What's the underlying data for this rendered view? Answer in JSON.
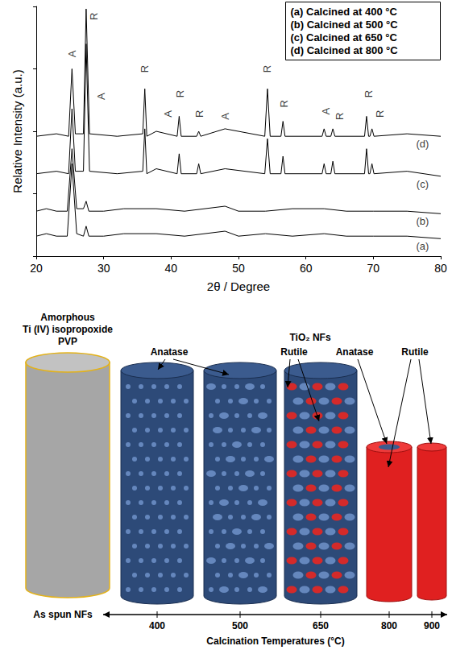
{
  "chart_data": {
    "type": "line",
    "x_label": "2θ / Degree",
    "y_label": "Relative Intensity (a.u.)",
    "xlim": [
      20,
      80
    ],
    "xticks": [
      20,
      30,
      40,
      50,
      60,
      70,
      80
    ],
    "ylim": [
      0,
      100
    ],
    "yticks": [
      0,
      25,
      50,
      75,
      100
    ],
    "tick_labels": "x",
    "grid": false,
    "series": [
      {
        "name": "(a)",
        "color": "#000000",
        "x": [
          20,
          21.5,
          23,
          24.6,
          25.3,
          26,
          27,
          27.4,
          27.8,
          30,
          33,
          37.8,
          42,
          48,
          50,
          54,
          58,
          62.7,
          66,
          70,
          75,
          80
        ],
        "values": [
          8,
          9,
          8,
          8,
          37,
          9,
          8,
          12,
          8,
          8,
          9,
          9,
          8,
          10,
          8,
          9,
          8,
          9,
          8,
          8,
          8,
          7
        ]
      },
      {
        "name": "(b)",
        "color": "#000000",
        "x": [
          20,
          21.5,
          23,
          24.6,
          25.3,
          26,
          27,
          27.4,
          27.8,
          30,
          33,
          37.8,
          42,
          48,
          50,
          54,
          58,
          62.7,
          66,
          70,
          75,
          80
        ],
        "values": [
          18,
          19,
          18,
          18,
          43,
          19,
          19,
          22,
          18,
          18,
          19,
          19,
          18,
          20,
          18,
          18,
          19,
          19,
          18,
          18,
          18,
          17
        ]
      },
      {
        "name": "(c)",
        "color": "#000000",
        "x": [
          20,
          23,
          24.8,
          25.3,
          25.8,
          27,
          27.4,
          27.9,
          32,
          35.8,
          36.1,
          36.4,
          37.8,
          40.9,
          41.2,
          41.5,
          43.8,
          44.1,
          44.4,
          48,
          53.9,
          54.3,
          54.7,
          56.3,
          56.6,
          56.9,
          62.4,
          62.7,
          63,
          63.7,
          64,
          64.3,
          68.7,
          69,
          69.3,
          69.5,
          69.8,
          70.1,
          75,
          80
        ],
        "values": [
          33,
          34,
          33,
          59,
          34,
          34,
          85,
          34,
          33,
          34,
          51,
          33,
          35,
          33,
          41,
          33,
          33,
          37,
          33,
          35,
          33,
          47,
          33,
          33,
          40,
          33,
          33,
          37,
          33,
          33,
          38,
          33,
          33,
          43,
          33,
          33,
          37,
          33,
          34,
          32
        ]
      },
      {
        "name": "(d)",
        "color": "#000000",
        "x": [
          20,
          23,
          24.8,
          25.3,
          25.8,
          27,
          27.4,
          27.9,
          32,
          35.8,
          36.1,
          36.4,
          37.8,
          40.9,
          41.2,
          41.5,
          43.8,
          44.1,
          44.4,
          48,
          53.9,
          54.3,
          54.7,
          56.3,
          56.6,
          56.9,
          62.4,
          62.7,
          63,
          63.7,
          64,
          64.3,
          68.7,
          69,
          69.3,
          69.5,
          69.8,
          70.1,
          75,
          80
        ],
        "values": [
          48,
          49,
          48,
          75,
          49,
          49,
          99,
          49,
          48,
          49,
          67,
          48,
          50,
          48,
          56,
          48,
          48,
          50,
          48,
          51,
          48,
          67,
          48,
          48,
          54,
          48,
          48,
          51,
          48,
          48,
          51,
          48,
          48,
          56,
          48,
          48,
          51,
          48,
          49,
          48
        ]
      }
    ],
    "annotations": [
      {
        "text": "A",
        "x": 25.3,
        "y": 81
      },
      {
        "text": "R",
        "x": 28.6,
        "y": 96
      },
      {
        "text": "A",
        "x": 29.6,
        "y": 64
      },
      {
        "text": "R",
        "x": 36.1,
        "y": 75
      },
      {
        "text": "A",
        "x": 39.5,
        "y": 57
      },
      {
        "text": "R",
        "x": 41.3,
        "y": 65
      },
      {
        "text": "R",
        "x": 44.2,
        "y": 57
      },
      {
        "text": "A",
        "x": 48,
        "y": 56
      },
      {
        "text": "R",
        "x": 54.3,
        "y": 75
      },
      {
        "text": "R",
        "x": 56.7,
        "y": 61
      },
      {
        "text": "A",
        "x": 63,
        "y": 58
      },
      {
        "text": "R",
        "x": 65,
        "y": 56
      },
      {
        "text": "R",
        "x": 69.3,
        "y": 65
      },
      {
        "text": "R",
        "x": 71,
        "y": 57
      }
    ],
    "key": [
      "(a) Calcined at 400 °C",
      "(b) Calcined at 500 °C",
      "(c) Calcined at 650 °C",
      "(d) Calcined at 800 °C"
    ]
  },
  "diagram": {
    "precursor": [
      "Amorphous",
      "Ti (IV) isopropoxide",
      "PVP"
    ],
    "product": "TiO₂ NFs",
    "phase_labels": [
      "Anatase",
      "Rutile",
      "Anatase",
      "Rutile"
    ],
    "axis": {
      "start": "As spun NFs",
      "ticks": [
        400,
        500,
        650,
        800,
        900
      ],
      "title": "Calcination Temperatures (°C)"
    }
  }
}
